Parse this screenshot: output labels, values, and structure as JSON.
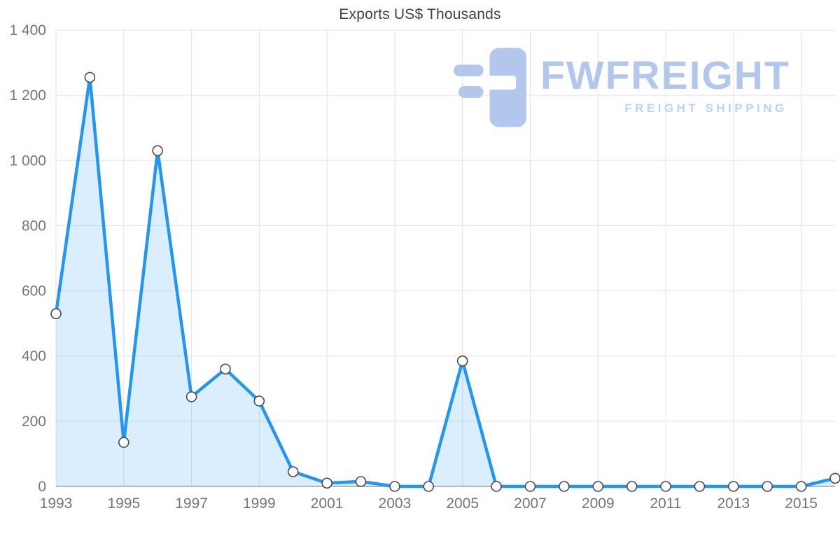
{
  "chart_data": {
    "type": "area",
    "title": "Exports US$ Thousands",
    "xlabel": "",
    "ylabel": "",
    "x": [
      1993,
      1994,
      1995,
      1996,
      1997,
      1998,
      1999,
      2000,
      2001,
      2002,
      2003,
      2004,
      2005,
      2006,
      2007,
      2008,
      2009,
      2010,
      2011,
      2012,
      2013,
      2014,
      2015,
      2016
    ],
    "values": [
      530,
      1255,
      135,
      1030,
      275,
      360,
      262,
      45,
      10,
      15,
      0,
      0,
      385,
      0,
      0,
      0,
      0,
      0,
      0,
      0,
      0,
      0,
      0,
      25
    ],
    "series_name": "Exports US$ Thousands",
    "ylim": [
      0,
      1400
    ],
    "xlim": [
      1993,
      2016
    ],
    "grid": true,
    "legend_position": "none",
    "y_tick_values": [
      0,
      200,
      400,
      600,
      800,
      1000,
      1200,
      1400
    ],
    "y_tick_labels": [
      "0",
      "200",
      "400",
      "600",
      "800",
      "1 000",
      "1 200",
      "1 400"
    ],
    "x_tick_values": [
      1993,
      1995,
      1997,
      1999,
      2001,
      2003,
      2005,
      2007,
      2009,
      2011,
      2013,
      2015
    ],
    "x_tick_labels": [
      "1993",
      "1995",
      "1997",
      "1999",
      "2001",
      "2003",
      "2005",
      "2007",
      "2009",
      "2011",
      "2013",
      "2015"
    ],
    "colors": {
      "line": "#2196f3",
      "fill": "rgba(33,150,243,0.16)",
      "marker_fill": "#ffffff",
      "marker_stroke": "#4a4a4a",
      "grid": "#e3e3e3",
      "axis": "#9e9e9e",
      "tick_text": "#757575",
      "title_text": "#424242"
    }
  },
  "logo": {
    "name": "FWFREIGHT",
    "tagline": "FREIGHT SHIPPING",
    "color": "#b3c7ed",
    "tagline_color": "#bdd3f5"
  }
}
